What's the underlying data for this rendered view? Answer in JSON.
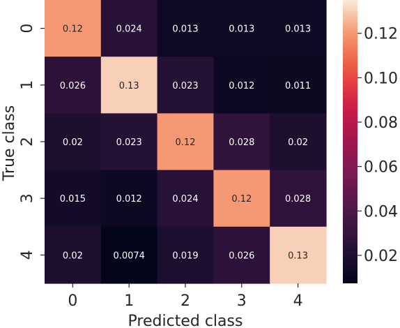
{
  "chart_data": {
    "type": "heatmap",
    "title": "",
    "xlabel": "Predicted class",
    "ylabel": "True class",
    "x_categories": [
      "0",
      "1",
      "2",
      "3",
      "4"
    ],
    "y_categories": [
      "0",
      "1",
      "2",
      "3",
      "4"
    ],
    "values": [
      [
        0.12,
        0.024,
        0.013,
        0.013,
        0.013
      ],
      [
        0.026,
        0.13,
        0.023,
        0.012,
        0.011
      ],
      [
        0.02,
        0.023,
        0.12,
        0.028,
        0.02
      ],
      [
        0.015,
        0.012,
        0.024,
        0.12,
        0.028
      ],
      [
        0.02,
        0.0074,
        0.019,
        0.026,
        0.13
      ]
    ],
    "cell_labels": [
      [
        "0.12",
        "0.024",
        "0.013",
        "0.013",
        "0.013"
      ],
      [
        "0.026",
        "0.13",
        "0.023",
        "0.012",
        "0.011"
      ],
      [
        "0.02",
        "0.023",
        "0.12",
        "0.028",
        "0.02"
      ],
      [
        "0.015",
        "0.012",
        "0.024",
        "0.12",
        "0.028"
      ],
      [
        "0.02",
        "0.0074",
        "0.019",
        "0.026",
        "0.13"
      ]
    ],
    "colorbar": {
      "min": 0.0074,
      "max": 0.135,
      "ticks": [
        0.02,
        0.04,
        0.06,
        0.08,
        0.1,
        0.12
      ],
      "tick_labels": [
        "0.02",
        "0.04",
        "0.06",
        "0.08",
        "0.10",
        "0.12"
      ],
      "colormap": "rocket"
    }
  }
}
